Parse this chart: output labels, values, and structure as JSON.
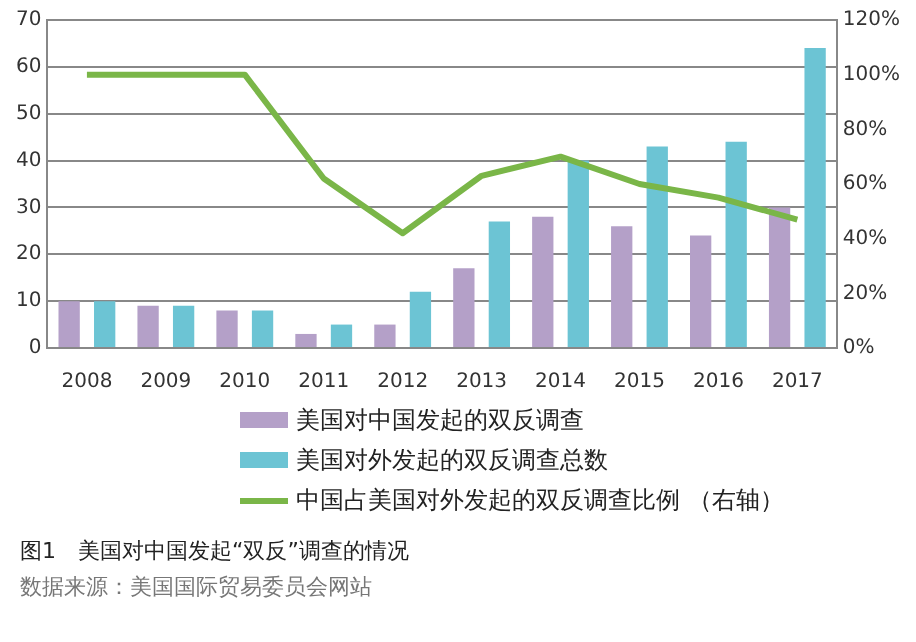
{
  "chart_data": {
    "type": "bar",
    "categories": [
      "2008",
      "2009",
      "2010",
      "2011",
      "2012",
      "2013",
      "2014",
      "2015",
      "2016",
      "2017"
    ],
    "series": [
      {
        "name": "美国对中国发起的双反调查",
        "color": "#b4a0c8",
        "values": [
          10,
          9,
          8,
          3,
          5,
          17,
          28,
          26,
          24,
          30
        ]
      },
      {
        "name": "美国对外发起的双反调查总数",
        "color": "#6cc4d4",
        "values": [
          10,
          9,
          8,
          5,
          12,
          27,
          40,
          43,
          44,
          64
        ]
      },
      {
        "name": "中国占美国对外发起的双反调查比例 （右轴）",
        "type": "line",
        "axis": "y2",
        "color": "#7ab648",
        "values": [
          100,
          100,
          100,
          62,
          42,
          63,
          70,
          60,
          55,
          47
        ]
      }
    ],
    "ylim": [
      0,
      70
    ],
    "yticks": [
      0,
      10,
      20,
      30,
      40,
      50,
      60,
      70
    ],
    "y2lim": [
      0,
      120
    ],
    "y2ticks": [
      {
        "value": 0,
        "label": "0%"
      },
      {
        "value": 20,
        "label": "20%"
      },
      {
        "value": 40,
        "label": "40%"
      },
      {
        "value": 60,
        "label": "60%"
      },
      {
        "value": 80,
        "label": "80%"
      },
      {
        "value": 100,
        "label": "100%"
      },
      {
        "value": 120,
        "label": "120%"
      }
    ],
    "grid": "y",
    "legend": "bottom",
    "marker": "none",
    "annotations": [
      "图1　美国对中国发起“双反”调查的情况",
      "数据来源：美国国际贸易委员会网站"
    ]
  }
}
